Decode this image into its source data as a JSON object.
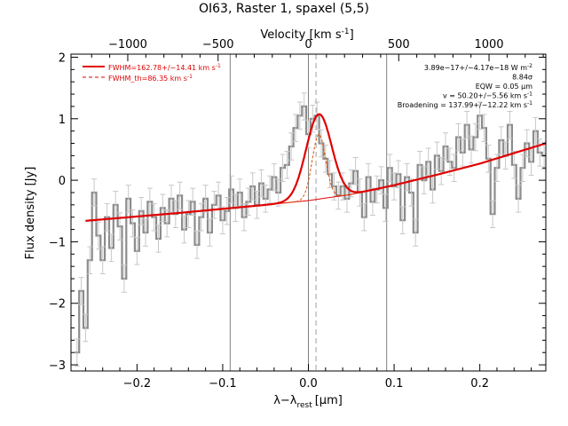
{
  "chart_data": {
    "type": "line",
    "title": "OI63, Raster 1, spaxel (5,5)",
    "xlabel": "λ−λrest [μm]",
    "xlabel_main": "λ−λ",
    "xlabel_sub": "rest",
    "xlabel_unit": "[μm]",
    "ylabel": "Flux density [Jy]",
    "top_axis_label": "Velocity [km s⁻¹]",
    "top_axis_label_main": "Velocity [km s",
    "top_axis_label_sup": "-1",
    "top_axis_label_close": "]",
    "xlim": [
      -0.277,
      0.277
    ],
    "ylim": [
      -3.1,
      2.05
    ],
    "x_ticks": [
      -0.2,
      -0.1,
      0.0,
      0.1,
      0.2
    ],
    "x_tick_labels": [
      "−0.2",
      "−0.1",
      "0.0",
      "0.1",
      "0.2"
    ],
    "y_ticks": [
      -3,
      -2,
      -1,
      0,
      1,
      2
    ],
    "y_tick_labels": [
      "−3",
      "−2",
      "−1",
      "0",
      "1",
      "2"
    ],
    "top_ticks_kms": [
      -1000,
      -500,
      0,
      500,
      1000
    ],
    "top_tick_labels": [
      "−1000",
      "−500",
      "0",
      "500",
      "1000"
    ],
    "vertical_lines_um": [
      -0.0913,
      0.0,
      0.0913
    ],
    "rest_line_um": 0.0089,
    "legend": {
      "placement": "top-left",
      "entries": [
        {
          "label": "FWHM=162.78+/−14.41 km s",
          "sup": "-1",
          "style": "solid",
          "color": "#e00000"
        },
        {
          "label": "FWHM_th=86.35 km s",
          "sup": "-1",
          "style": "dashed",
          "color": "#e00000"
        }
      ]
    },
    "annotations": [
      {
        "text": "3.89e−17+/−4.17e−18 W m",
        "sup": "-2"
      },
      {
        "text": "8.84σ",
        "sup": ""
      },
      {
        "text": "EQW = 0.05 μm",
        "sup": ""
      },
      {
        "text": "v = 50.20+/−5.56 km s",
        "sup": "-1"
      },
      {
        "text": "Broadening = 137.99+/−12.22 km s",
        "sup": "-1"
      }
    ],
    "fit": {
      "baseline": [
        [
          -0.26,
          -0.66
        ],
        [
          -0.15,
          -0.53
        ],
        [
          -0.05,
          -0.4
        ],
        [
          0.0,
          -0.33
        ],
        [
          0.05,
          -0.23
        ],
        [
          0.1,
          -0.08
        ],
        [
          0.15,
          0.09
        ],
        [
          0.2,
          0.27
        ],
        [
          0.277,
          0.6
        ]
      ],
      "line_center_um": 0.0122,
      "line_sigma_um": 0.0149,
      "line_peak_jy": 1.38,
      "thermal_sigma_um": 0.0079,
      "thermal_peak_jy": 1.05
    },
    "series": [
      {
        "style": "histogram",
        "color": "#8c8c8c",
        "x": [
          -0.27,
          -0.265,
          -0.26,
          -0.255,
          -0.25,
          -0.245,
          -0.24,
          -0.235,
          -0.23,
          -0.225,
          -0.22,
          -0.215,
          -0.21,
          -0.205,
          -0.2,
          -0.195,
          -0.19,
          -0.185,
          -0.18,
          -0.175,
          -0.17,
          -0.165,
          -0.16,
          -0.155,
          -0.15,
          -0.145,
          -0.14,
          -0.135,
          -0.13,
          -0.125,
          -0.12,
          -0.115,
          -0.11,
          -0.105,
          -0.1,
          -0.095,
          -0.09,
          -0.085,
          -0.08,
          -0.075,
          -0.07,
          -0.065,
          -0.06,
          -0.055,
          -0.05,
          -0.045,
          -0.04,
          -0.035,
          -0.03,
          -0.025,
          -0.02,
          -0.015,
          -0.01,
          -0.005,
          0.0,
          0.005,
          0.01,
          0.015,
          0.02,
          0.025,
          0.03,
          0.035,
          0.04,
          0.045,
          0.05,
          0.055,
          0.06,
          0.065,
          0.07,
          0.075,
          0.08,
          0.085,
          0.09,
          0.095,
          0.1,
          0.105,
          0.11,
          0.115,
          0.12,
          0.125,
          0.13,
          0.135,
          0.14,
          0.145,
          0.15,
          0.155,
          0.16,
          0.165,
          0.17,
          0.175,
          0.18,
          0.185,
          0.19,
          0.195,
          0.2,
          0.205,
          0.21,
          0.215,
          0.22,
          0.225,
          0.23,
          0.235,
          0.24,
          0.245,
          0.25,
          0.255,
          0.26,
          0.265,
          0.27,
          0.275
        ],
        "y": [
          -2.8,
          -1.8,
          -2.4,
          -1.3,
          -0.2,
          -0.9,
          -1.3,
          -0.6,
          -1.1,
          -0.4,
          -0.75,
          -1.6,
          -0.3,
          -0.7,
          -1.15,
          -0.5,
          -0.85,
          -0.35,
          -0.6,
          -0.95,
          -0.45,
          -0.7,
          -0.3,
          -0.55,
          -0.25,
          -0.8,
          -0.55,
          -0.35,
          -1.05,
          -0.6,
          -0.3,
          -0.85,
          -0.4,
          -0.25,
          -0.65,
          -0.5,
          -0.15,
          -0.45,
          -0.2,
          -0.6,
          -0.35,
          -0.1,
          -0.4,
          -0.05,
          -0.3,
          -0.15,
          0.05,
          -0.2,
          0.2,
          0.25,
          0.55,
          0.85,
          1.05,
          1.2,
          0.75,
          1.0,
          1.05,
          0.6,
          0.35,
          0.1,
          -0.1,
          -0.25,
          -0.1,
          -0.3,
          -0.05,
          0.15,
          -0.2,
          -0.6,
          0.05,
          -0.35,
          -0.15,
          0.0,
          -0.45,
          0.2,
          -0.1,
          0.1,
          -0.65,
          0.05,
          -0.2,
          -0.85,
          0.25,
          0.0,
          0.3,
          -0.15,
          0.4,
          0.15,
          0.55,
          0.3,
          0.2,
          0.7,
          0.45,
          0.9,
          0.5,
          0.7,
          1.05,
          0.85,
          0.35,
          -0.55,
          0.2,
          0.65,
          0.4,
          0.9,
          0.25,
          -0.3,
          0.2,
          0.6,
          0.3,
          0.8,
          0.45,
          0.4
        ],
        "error": 0.22
      }
    ]
  }
}
